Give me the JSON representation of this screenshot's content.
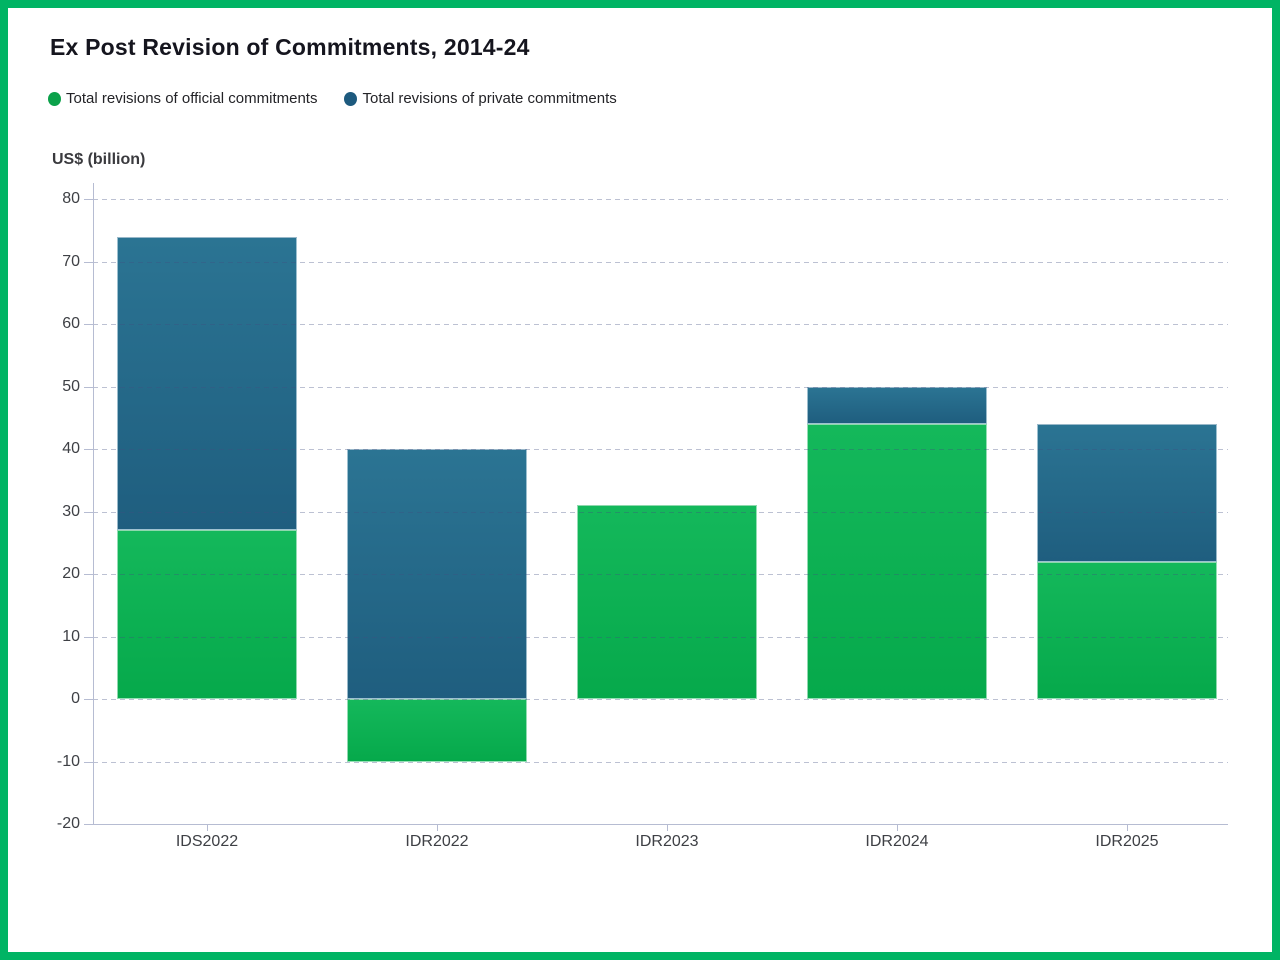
{
  "frame": {
    "border_color": "#00b464"
  },
  "chart": {
    "title": "Ex Post Revision of Commitments, 2014-24",
    "axis_title": "US$ (billion)"
  },
  "legend": {
    "items": [
      {
        "label": "Total revisions of official commitments",
        "color": "#0ba14a"
      },
      {
        "label": "Total revisions of private commitments",
        "color": "#1d5a7e"
      }
    ]
  },
  "chart_data": {
    "type": "bar",
    "stacked": true,
    "title": "Ex Post Revision of Commitments, 2014-24",
    "ylabel": "US$ (billion)",
    "xlabel": "",
    "categories": [
      "IDS2022",
      "IDR2022",
      "IDR2023",
      "IDR2024",
      "IDR2025"
    ],
    "series": [
      {
        "name": "Total revisions of official commitments",
        "color": "#0db155",
        "values": [
          27,
          -10,
          31,
          44,
          22
        ]
      },
      {
        "name": "Total revisions of private commitments",
        "color": "#266d8d",
        "values": [
          47,
          40,
          0,
          6,
          22
        ]
      }
    ],
    "stack_totals": [
      74,
      30,
      31,
      50,
      44
    ],
    "ylim": [
      -20,
      80
    ],
    "ytick_step": 10,
    "yticks": [
      80,
      70,
      60,
      50,
      40,
      30,
      20,
      10,
      0,
      -10,
      -20
    ],
    "grid": "dashed-horizontal",
    "legend_position": "top-left"
  }
}
